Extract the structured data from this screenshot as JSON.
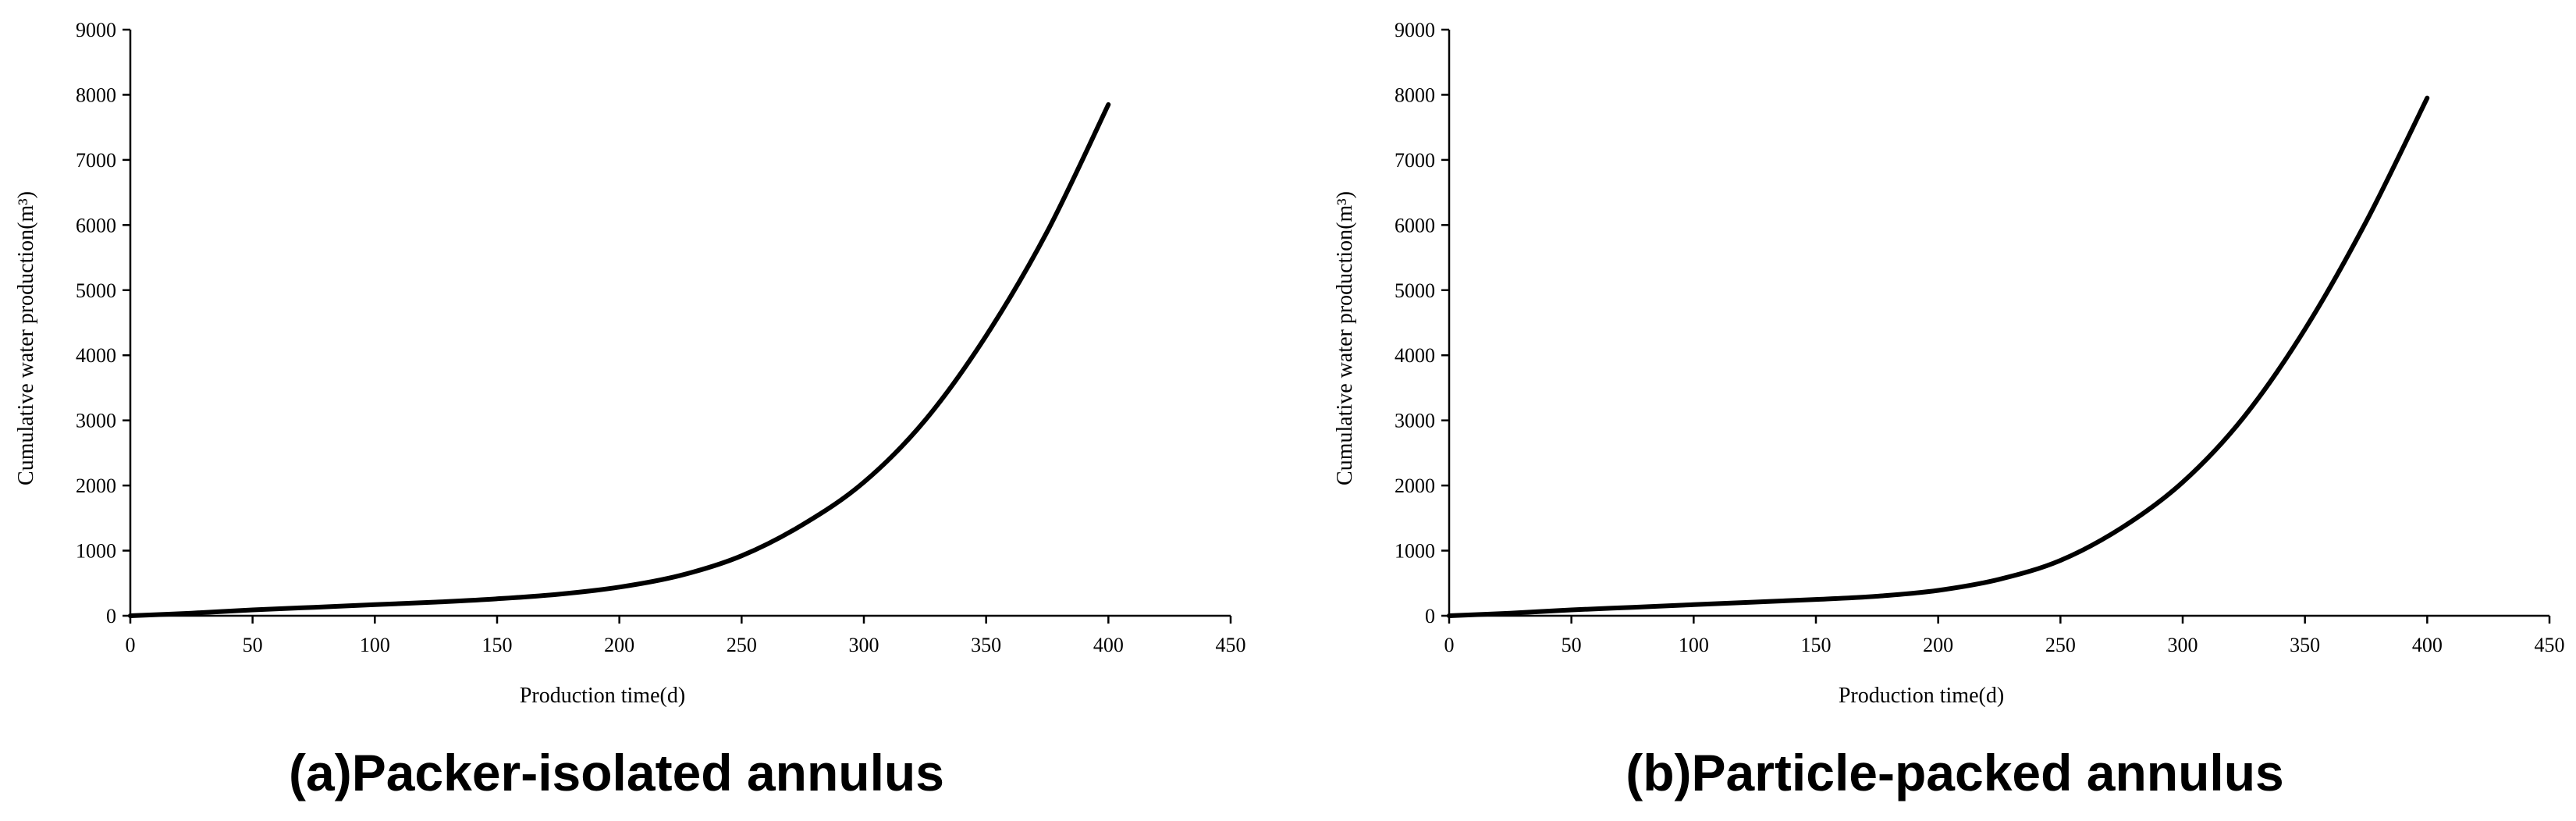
{
  "chart_data": [
    {
      "type": "line",
      "title": "(a)Packer-isolated annulus",
      "xlabel": "Production time(d)",
      "ylabel": "Cumulative water production(m³)",
      "xlim": [
        0,
        450
      ],
      "ylim": [
        0,
        9000
      ],
      "xticks": [
        0,
        50,
        100,
        150,
        200,
        250,
        300,
        350,
        400,
        450
      ],
      "yticks": [
        0,
        1000,
        2000,
        3000,
        4000,
        5000,
        6000,
        7000,
        8000,
        9000
      ],
      "grid": false,
      "series": [
        {
          "color": "#000000",
          "x": [
            0,
            25,
            50,
            75,
            100,
            125,
            150,
            175,
            200,
            225,
            250,
            275,
            300,
            325,
            350,
            375,
            400
          ],
          "y": [
            0,
            40,
            90,
            130,
            170,
            210,
            260,
            330,
            440,
            620,
            920,
            1400,
            2050,
            3000,
            4300,
            5900,
            7850
          ]
        }
      ]
    },
    {
      "type": "line",
      "title": "(b)Particle-packed annulus",
      "xlabel": "Production time(d)",
      "ylabel": "Cumulative water production(m³)",
      "xlim": [
        0,
        450
      ],
      "ylim": [
        0,
        9000
      ],
      "xticks": [
        0,
        50,
        100,
        150,
        200,
        250,
        300,
        350,
        400,
        450
      ],
      "yticks": [
        0,
        1000,
        2000,
        3000,
        4000,
        5000,
        6000,
        7000,
        8000,
        9000
      ],
      "grid": false,
      "series": [
        {
          "color": "#000000",
          "x": [
            0,
            25,
            50,
            75,
            100,
            125,
            150,
            175,
            200,
            225,
            250,
            275,
            300,
            325,
            350,
            375,
            400
          ],
          "y": [
            0,
            40,
            90,
            130,
            170,
            210,
            250,
            300,
            390,
            560,
            850,
            1350,
            2050,
            3050,
            4400,
            6050,
            7950
          ]
        }
      ]
    }
  ]
}
